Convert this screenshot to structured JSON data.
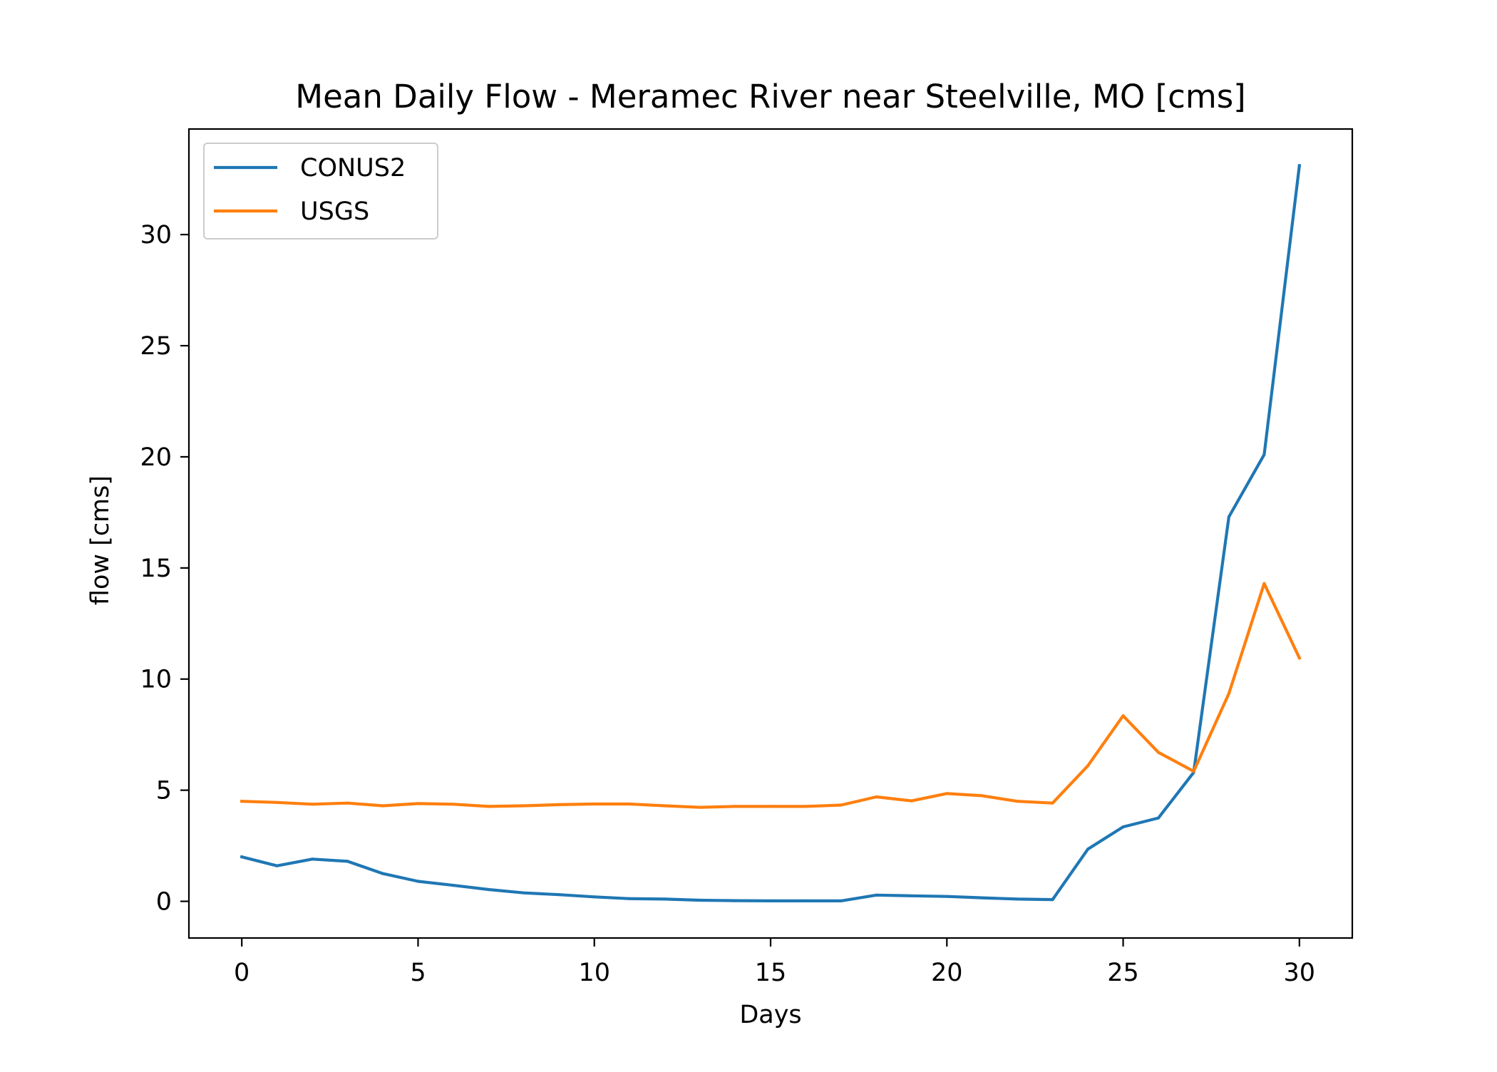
{
  "chart_data": {
    "type": "line",
    "title": "Mean Daily Flow - Meramec River near Steelville, MO [cms]",
    "xlabel": "Days",
    "ylabel": "flow [cms]",
    "xlim": [
      -1.5,
      31.5
    ],
    "ylim": [
      -1.65,
      34.75
    ],
    "x_ticks": [
      0,
      5,
      10,
      15,
      20,
      25,
      30
    ],
    "y_ticks": [
      0,
      5,
      10,
      15,
      20,
      25,
      30
    ],
    "grid": false,
    "legend_position": "upper left",
    "x": [
      0,
      1,
      2,
      3,
      4,
      5,
      6,
      7,
      8,
      9,
      10,
      11,
      12,
      13,
      14,
      15,
      16,
      17,
      18,
      19,
      20,
      21,
      22,
      23,
      24,
      25,
      26,
      27,
      28,
      29,
      30
    ],
    "series": [
      {
        "name": "CONUS2",
        "color": "#1f77b4",
        "values": [
          2.0,
          1.6,
          1.9,
          1.8,
          1.25,
          0.9,
          0.72,
          0.53,
          0.38,
          0.3,
          0.2,
          0.12,
          0.1,
          0.05,
          0.03,
          0.02,
          0.02,
          0.02,
          0.28,
          0.25,
          0.22,
          0.16,
          0.1,
          0.08,
          2.35,
          3.35,
          3.75,
          5.8,
          17.3,
          20.1,
          33.1
        ]
      },
      {
        "name": "USGS",
        "color": "#ff7f0e",
        "values": [
          4.5,
          4.45,
          4.37,
          4.42,
          4.3,
          4.4,
          4.37,
          4.27,
          4.3,
          4.35,
          4.38,
          4.38,
          4.3,
          4.23,
          4.27,
          4.27,
          4.27,
          4.33,
          4.7,
          4.52,
          4.85,
          4.75,
          4.5,
          4.42,
          6.1,
          8.35,
          6.7,
          5.85,
          9.35,
          14.3,
          10.95
        ]
      }
    ]
  }
}
